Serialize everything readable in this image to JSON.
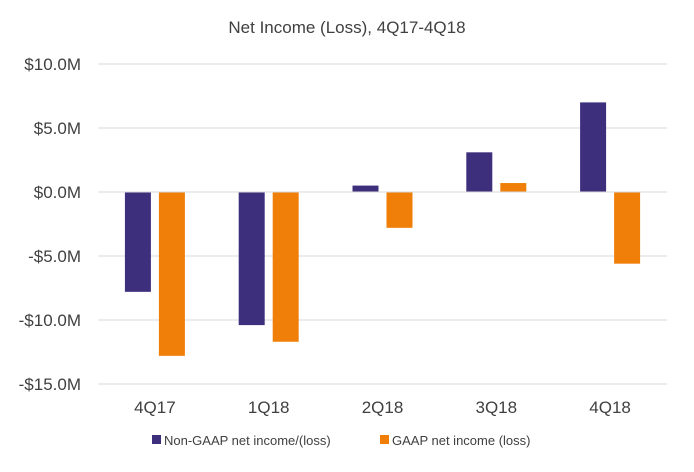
{
  "chart_data": {
    "type": "bar",
    "title": "Net Income (Loss), 4Q17-4Q18",
    "categories": [
      "4Q17",
      "1Q18",
      "2Q18",
      "3Q18",
      "4Q18"
    ],
    "series": [
      {
        "name": "Non-GAAP net income/(loss)",
        "color": "#3e2f7d",
        "values": [
          -7.8,
          -10.4,
          0.5,
          3.1,
          7.0
        ]
      },
      {
        "name": "GAAP net income (loss)",
        "color": "#f07f09",
        "values": [
          -12.8,
          -11.7,
          -2.8,
          0.7,
          -5.6
        ]
      }
    ],
    "ylim": [
      -15,
      10
    ],
    "yticks": [
      10,
      5,
      0,
      -5,
      -10,
      -15
    ],
    "ytick_labels": [
      "$10.0M",
      "$5.0M",
      "$0.0M",
      "-$5.0M",
      "-$10.0M",
      "-$15.0M"
    ],
    "xlabel": "",
    "ylabel": "",
    "grid": true,
    "legend": "bottom",
    "gridline_color": "#d9d9d9"
  }
}
